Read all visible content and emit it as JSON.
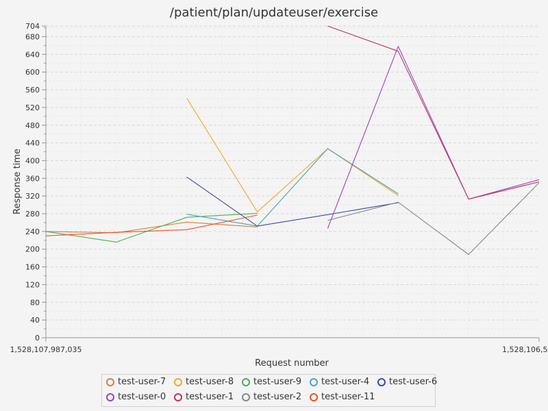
{
  "chart_data": {
    "type": "line",
    "title": "/patient/plan/updateuser/exercise",
    "xlabel": "Request number",
    "ylabel": "Response time",
    "x_tick_labels": [
      "1,528,107,987,035",
      "1,528,106,5"
    ],
    "y_ticks": [
      0,
      40,
      80,
      120,
      160,
      200,
      240,
      280,
      320,
      360,
      400,
      440,
      480,
      520,
      560,
      600,
      640,
      680,
      704
    ],
    "ylim": [
      0,
      704
    ],
    "xlim": [
      0,
      7
    ],
    "grid": true,
    "legend_position": "bottom",
    "series": [
      {
        "name": "test-user-7",
        "color": "#e07b3a",
        "x": [
          0,
          1,
          2,
          3
        ],
        "y": [
          240,
          237,
          261,
          250
        ]
      },
      {
        "name": "test-user-8",
        "color": "#f5a623",
        "x": [
          2,
          3,
          4,
          5
        ],
        "y": [
          541,
          284,
          427,
          321
        ]
      },
      {
        "name": "test-user-9",
        "color": "#4caf50",
        "x": [
          0,
          1,
          2,
          3
        ],
        "y": [
          240,
          216,
          272,
          281
        ]
      },
      {
        "name": "test-user-4",
        "color": "#46a3c2",
        "x": [
          2,
          3,
          4,
          5
        ],
        "y": [
          279,
          252,
          427,
          325
        ]
      },
      {
        "name": "test-user-6",
        "color": "#3949ab",
        "x": [
          2,
          3,
          4,
          5
        ],
        "y": [
          363,
          252,
          278,
          305
        ]
      },
      {
        "name": "test-user-0",
        "color": "#9b3fc4",
        "x": [
          4,
          5,
          6,
          7
        ],
        "y": [
          247,
          658,
          313,
          357
        ]
      },
      {
        "name": "test-user-1",
        "color": "#c2315f",
        "x": [
          4,
          5,
          6,
          7
        ],
        "y": [
          704,
          647,
          313,
          352
        ]
      },
      {
        "name": "test-user-2",
        "color": "#888888",
        "x": [
          4,
          5,
          6,
          7
        ],
        "y": [
          265,
          306,
          188,
          350
        ]
      },
      {
        "name": "test-user-11",
        "color": "#f25022",
        "x": [
          0,
          1,
          2,
          3
        ],
        "y": [
          230,
          238,
          244,
          277
        ]
      }
    ]
  }
}
